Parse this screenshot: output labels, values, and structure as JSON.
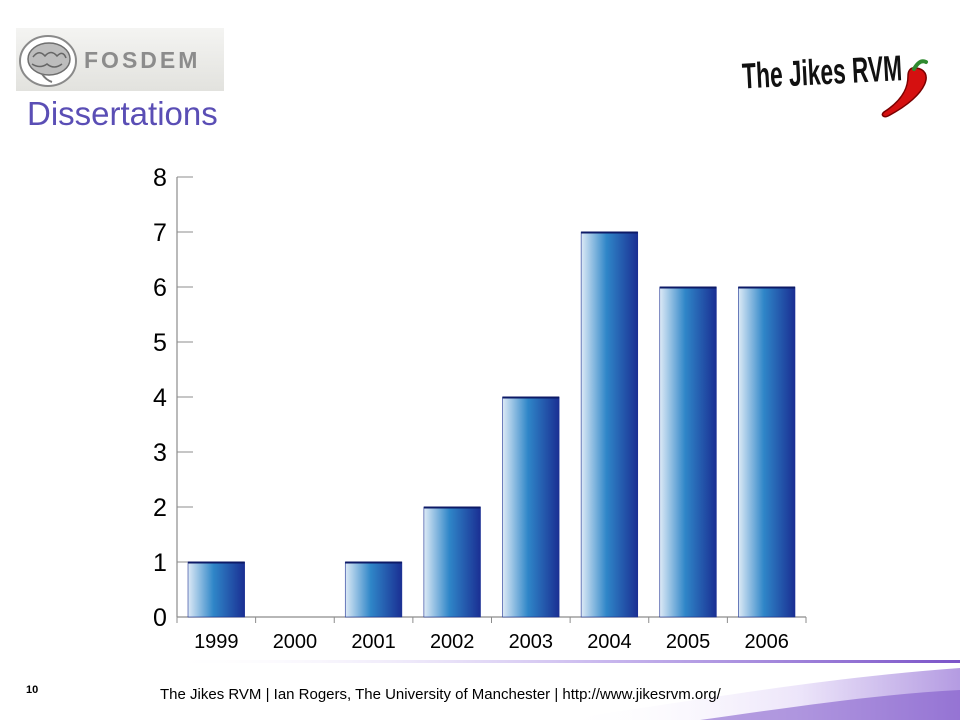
{
  "slide": {
    "title": "Dissertations",
    "page_number": "10",
    "footer": "The Jikes RVM |  Ian Rogers, The University of Manchester  | http://www.jikesrvm.org/"
  },
  "logos": {
    "fosdem": {
      "text": "FOSDEM",
      "icon": "brain-icon"
    },
    "jikes": {
      "text": "The Jikes RVM",
      "icon": "chili-pepper-icon"
    }
  },
  "colors": {
    "title": "#5a4eb5",
    "bar_light": "#ddeaf6",
    "bar_mid": "#2f86c8",
    "bar_dark": "#1a2f93",
    "footer_accent": "#7b54c8"
  },
  "chart_data": {
    "type": "bar",
    "categories": [
      "1999",
      "2000",
      "2001",
      "2002",
      "2003",
      "2004",
      "2005",
      "2006"
    ],
    "values": [
      1,
      0,
      1,
      2,
      4,
      7,
      6,
      6
    ],
    "ylim": [
      0,
      8
    ],
    "yticks": [
      0,
      1,
      2,
      3,
      4,
      5,
      6,
      7,
      8
    ],
    "grid": false,
    "legend": "none"
  }
}
